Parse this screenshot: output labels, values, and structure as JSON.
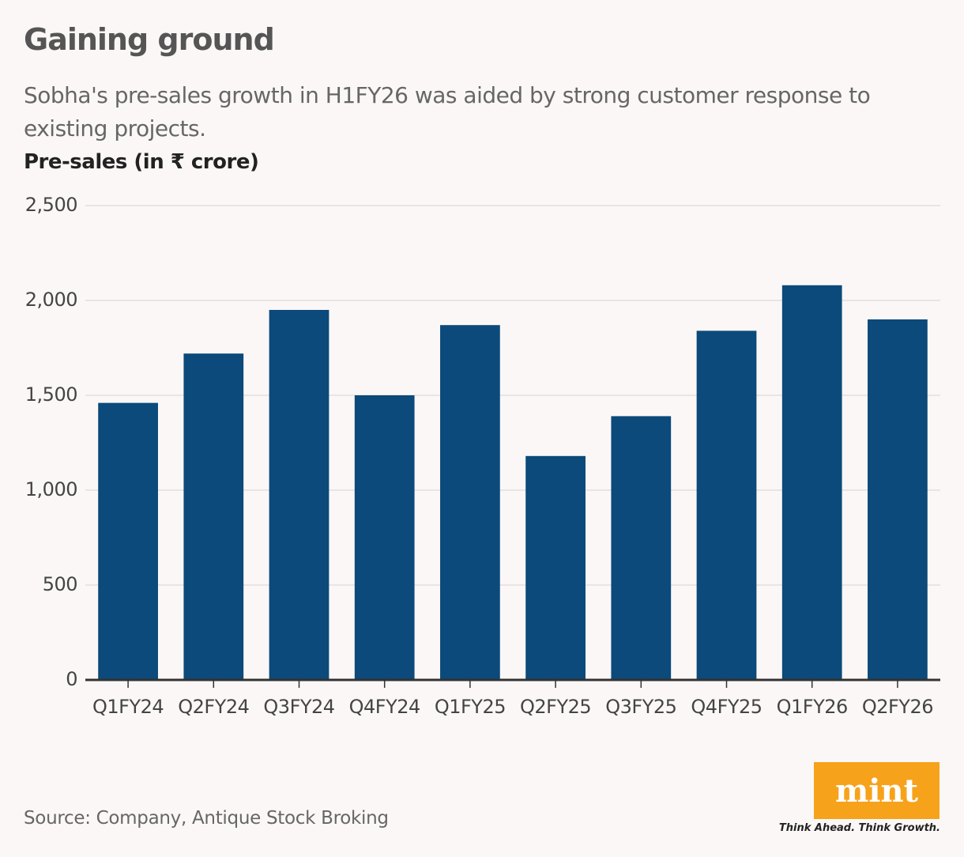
{
  "chart_data": {
    "type": "bar",
    "title": "Gaining ground",
    "subtitle": "Sobha's pre-sales growth in H1FY26 was aided by strong customer response to existing projects.",
    "y_label": "Pre-sales (in ₹ crore)",
    "categories": [
      "Q1FY24",
      "Q2FY24",
      "Q3FY24",
      "Q4FY24",
      "Q1FY25",
      "Q2FY25",
      "Q3FY25",
      "Q4FY25",
      "Q1FY26",
      "Q2FY26"
    ],
    "values": [
      1460,
      1720,
      1950,
      1500,
      1870,
      1180,
      1390,
      1840,
      2080,
      1900
    ],
    "color": "#0b4a7a",
    "ylim": [
      0,
      2500
    ],
    "yticks": [
      0,
      500,
      {
        "value": 1000,
        "label": "1,000"
      },
      {
        "value": 1500,
        "label": "1,500"
      },
      {
        "value": 2000,
        "label": "2,000"
      },
      {
        "value": 2500,
        "label": "2,500"
      }
    ],
    "grid": true,
    "source": "Source: Company, Antique Stock Broking"
  },
  "brand": {
    "logo": "mint",
    "tagline": "Think Ahead. Think Growth."
  }
}
